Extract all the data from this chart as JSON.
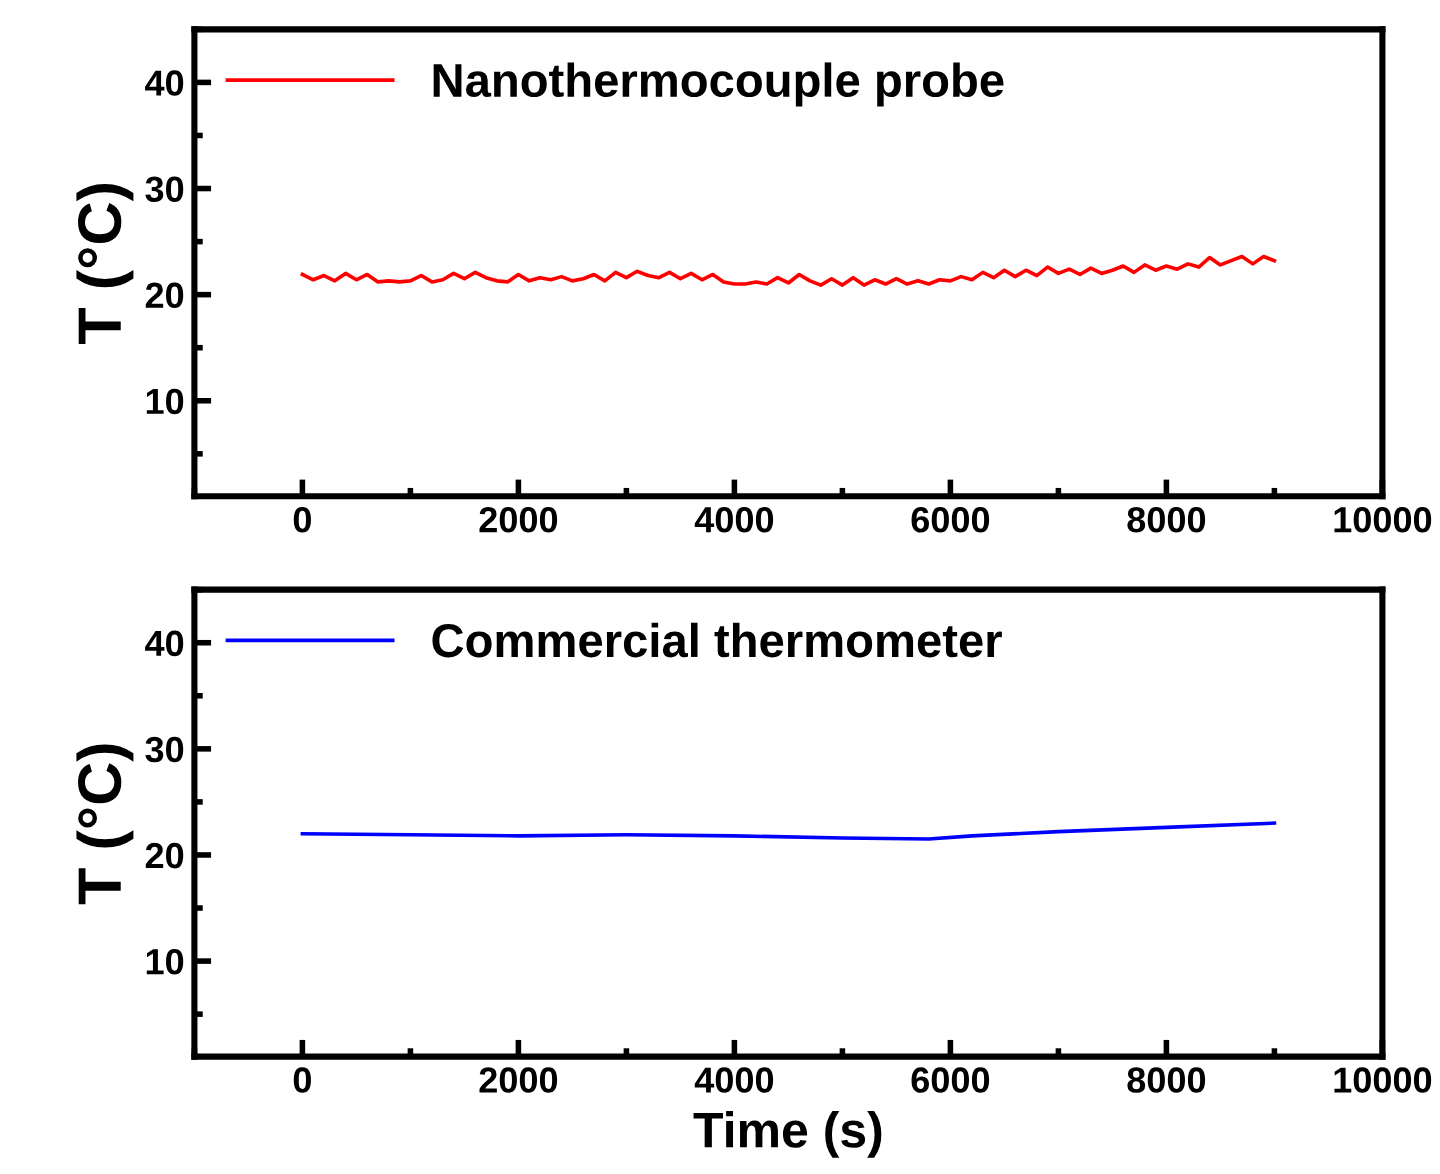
{
  "chart_data": [
    {
      "type": "line",
      "ylabel": "T (°C)",
      "xlim": [
        -1000,
        10000
      ],
      "xticks": [
        0,
        2000,
        4000,
        6000,
        8000,
        10000
      ],
      "ylim": [
        1,
        45
      ],
      "yticks": [
        10,
        20,
        30,
        40
      ],
      "grid": false,
      "legend": "top left",
      "x": [
        0,
        100,
        200,
        300,
        400,
        500,
        600,
        700,
        800,
        900,
        1000,
        1100,
        1200,
        1300,
        1400,
        1500,
        1600,
        1700,
        1800,
        1900,
        2000,
        2100,
        2200,
        2300,
        2400,
        2500,
        2600,
        2700,
        2800,
        2900,
        3000,
        3100,
        3200,
        3300,
        3400,
        3500,
        3600,
        3700,
        3800,
        3900,
        4000,
        4100,
        4200,
        4300,
        4400,
        4500,
        4600,
        4700,
        4800,
        4900,
        5000,
        5100,
        5200,
        5300,
        5400,
        5500,
        5600,
        5700,
        5800,
        5900,
        6000,
        6100,
        6200,
        6300,
        6400,
        6500,
        6600,
        6700,
        6800,
        6900,
        7000,
        7100,
        7200,
        7300,
        7400,
        7500,
        7600,
        7700,
        7800,
        7900,
        8000,
        8100,
        8200,
        8300,
        8400,
        8500,
        8600,
        8700,
        8800,
        8900,
        9000
      ],
      "series": [
        {
          "name": "Nanothermocouple probe",
          "color": "#ff0000",
          "values": [
            21.9,
            21.4,
            21.8,
            21.3,
            22.0,
            21.4,
            21.9,
            21.2,
            21.3,
            21.2,
            21.3,
            21.8,
            21.2,
            21.4,
            22.0,
            21.5,
            22.1,
            21.6,
            21.3,
            21.2,
            21.9,
            21.3,
            21.6,
            21.4,
            21.7,
            21.3,
            21.5,
            21.9,
            21.3,
            22.1,
            21.6,
            22.2,
            21.8,
            21.6,
            22.1,
            21.5,
            22.0,
            21.4,
            21.9,
            21.2,
            21.0,
            21.0,
            21.2,
            21.0,
            21.6,
            21.1,
            21.9,
            21.3,
            20.9,
            21.5,
            20.9,
            21.6,
            20.9,
            21.4,
            21.0,
            21.5,
            21.0,
            21.3,
            21.0,
            21.4,
            21.3,
            21.7,
            21.4,
            22.1,
            21.6,
            22.3,
            21.7,
            22.3,
            21.8,
            22.6,
            22.0,
            22.4,
            21.9,
            22.5,
            22.0,
            22.3,
            22.7,
            22.1,
            22.8,
            22.3,
            22.7,
            22.4,
            22.9,
            22.6,
            23.5,
            22.8,
            23.2,
            23.6,
            22.9,
            23.6,
            23.2
          ]
        }
      ]
    },
    {
      "type": "line",
      "ylabel": "T (°C)",
      "xlabel": "Time (s)",
      "xlim": [
        -1000,
        10000
      ],
      "xticks": [
        0,
        2000,
        4000,
        6000,
        8000,
        10000
      ],
      "ylim": [
        1,
        45
      ],
      "yticks": [
        10,
        20,
        30,
        40
      ],
      "grid": false,
      "legend": "top left",
      "x": [
        0,
        1000,
        2000,
        3000,
        4000,
        5000,
        5800,
        6200,
        7000,
        8000,
        9000
      ],
      "series": [
        {
          "name": "Commercial thermometer",
          "color": "#0000ff",
          "values": [
            22.0,
            21.9,
            21.8,
            21.9,
            21.8,
            21.6,
            21.5,
            21.8,
            22.2,
            22.6,
            23.0
          ]
        }
      ]
    }
  ]
}
